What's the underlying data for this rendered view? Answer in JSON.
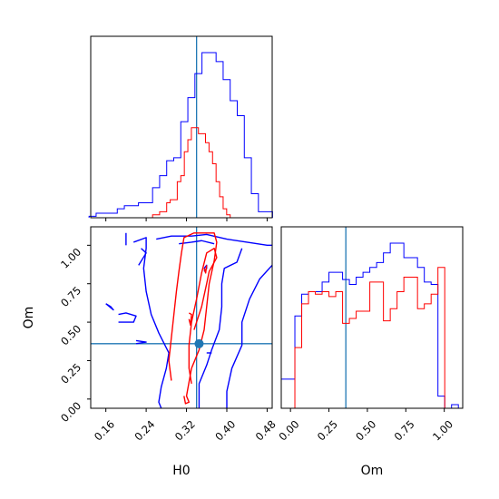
{
  "colors": {
    "series_a": "#0000ff",
    "series_b": "#ff0000",
    "truth": "#1f77b4",
    "frame": "#000000"
  },
  "chart_data": [
    {
      "type": "histogram",
      "panel": "H0 marginal",
      "xlim": [
        0.13,
        0.49
      ],
      "xticks": [
        0.16,
        0.24,
        0.32,
        0.4,
        0.48
      ],
      "tick_labels_shown": false,
      "truth_x": 0.34,
      "bin_edges": [
        0.1267,
        0.1407,
        0.1547,
        0.1687,
        0.1827,
        0.1967,
        0.2107,
        0.2247,
        0.2387,
        0.2527,
        0.2667,
        0.2807,
        0.2947,
        0.3087,
        0.3227,
        0.3367,
        0.3507,
        0.3647,
        0.3787,
        0.3927,
        0.4067,
        0.4207,
        0.4347,
        0.4487,
        0.4627,
        0.4767,
        0.4907
      ],
      "series": [
        {
          "name": "",
          "color": "#0000ff",
          "values": [
            0.5,
            1.5,
            1.5,
            1.5,
            3,
            4,
            4,
            5,
            5,
            10,
            14,
            19,
            20,
            32,
            40,
            48,
            55,
            55,
            52,
            46,
            39,
            34,
            20,
            8,
            2,
            2
          ]
        },
        {
          "name": "",
          "color": "#ff0000"
        }
      ],
      "series_b_steps": {
        "edges": [
          0.2387,
          0.2457,
          0.2527,
          0.2597,
          0.2667,
          0.2737,
          0.2807,
          0.2877,
          0.2947,
          0.3017,
          0.3087,
          0.3157,
          0.3227,
          0.3297,
          0.3367,
          0.3437,
          0.3507,
          0.3577,
          0.3647,
          0.3717,
          0.3787,
          0.3857,
          0.3927,
          0.3997,
          0.4067
        ],
        "values": [
          0,
          0,
          1,
          1,
          2,
          2,
          5,
          6,
          6,
          12,
          14,
          22,
          26,
          30,
          30,
          28,
          28,
          25,
          22,
          18,
          12,
          7,
          3,
          1
        ]
      }
    },
    {
      "type": "contour",
      "panel": "H0 vs Om joint",
      "xlabel": "H0",
      "ylabel": "Om",
      "xlim": [
        0.13,
        0.49
      ],
      "ylim": [
        -0.06,
        1.12
      ],
      "xticks": [
        0.16,
        0.24,
        0.32,
        0.4,
        0.48
      ],
      "yticks": [
        0.0,
        0.25,
        0.5,
        0.75,
        1.0
      ],
      "xtick_labels": [
        "0.16",
        "0.24",
        "0.32",
        "0.40",
        "0.48"
      ],
      "ytick_labels": [
        "0.00",
        "0.25",
        "0.50",
        "0.75",
        "1.00"
      ],
      "truth": [
        0.34,
        0.36
      ],
      "marker": [
        0.345,
        0.36
      ],
      "series": [
        {
          "name": "",
          "color": "#0000ff",
          "contours": [
            [
              [
                0.215,
                1.02
              ],
              [
                0.24,
                1.05
              ],
              [
                0.24,
                0.98
              ],
              [
                0.235,
                0.85
              ],
              [
                0.24,
                0.7
              ],
              [
                0.25,
                0.55
              ],
              [
                0.265,
                0.43
              ],
              [
                0.285,
                0.3
              ],
              [
                0.28,
                0.2
              ],
              [
                0.27,
                0.08
              ],
              [
                0.265,
                -0.02
              ],
              [
                0.27,
                -0.06
              ]
            ],
            [
              [
                0.26,
                1.04
              ],
              [
                0.29,
                1.06
              ],
              [
                0.33,
                1.06
              ],
              [
                0.36,
                1.07
              ],
              [
                0.4,
                1.04
              ],
              [
                0.44,
                1.02
              ],
              [
                0.48,
                1.0
              ],
              [
                0.49,
                1.0
              ]
            ],
            [
              [
                0.305,
                1.01
              ],
              [
                0.33,
                1.02
              ],
              [
                0.35,
                1.03
              ],
              [
                0.375,
                1.01
              ]
            ],
            [
              [
                0.43,
                0.98
              ],
              [
                0.42,
                0.89
              ],
              [
                0.395,
                0.85
              ],
              [
                0.39,
                0.75
              ],
              [
                0.39,
                0.6
              ],
              [
                0.385,
                0.45
              ],
              [
                0.37,
                0.32
              ],
              [
                0.36,
                0.22
              ],
              [
                0.345,
                0.1
              ],
              [
                0.345,
                -0.06
              ]
            ],
            [
              [
                0.49,
                0.87
              ],
              [
                0.465,
                0.78
              ],
              [
                0.445,
                0.65
              ],
              [
                0.43,
                0.5
              ],
              [
                0.43,
                0.35
              ],
              [
                0.41,
                0.2
              ],
              [
                0.4,
                0.05
              ],
              [
                0.4,
                -0.06
              ]
            ],
            [
              [
                0.2,
                1.0
              ],
              [
                0.2,
                1.08
              ]
            ],
            [
              [
                0.225,
                0.87
              ],
              [
                0.24,
                0.95
              ],
              [
                0.23,
                0.98
              ]
            ],
            [
              [
                0.355,
                0.83
              ],
              [
                0.36,
                0.85
              ],
              [
                0.36,
                0.87
              ],
              [
                0.355,
                0.85
              ]
            ],
            [
              [
                0.16,
                0.62
              ],
              [
                0.175,
                0.58
              ],
              [
                0.17,
                0.6
              ],
              [
                0.16,
                0.62
              ]
            ],
            [
              [
                0.185,
                0.5
              ],
              [
                0.215,
                0.5
              ],
              [
                0.22,
                0.54
              ],
              [
                0.2,
                0.56
              ],
              [
                0.185,
                0.55
              ]
            ],
            [
              [
                0.22,
                0.36
              ],
              [
                0.24,
                0.37
              ],
              [
                0.22,
                0.38
              ]
            ],
            [
              [
                0.36,
                0.3
              ],
              [
                0.37,
                0.3
              ]
            ]
          ]
        },
        {
          "name": "",
          "color": "#ff0000",
          "contours": [
            [
              [
                0.29,
                0.12
              ],
              [
                0.285,
                0.25
              ],
              [
                0.29,
                0.4
              ],
              [
                0.295,
                0.55
              ],
              [
                0.3,
                0.7
              ],
              [
                0.305,
                0.83
              ],
              [
                0.31,
                0.95
              ],
              [
                0.315,
                1.05
              ],
              [
                0.335,
                1.08
              ],
              [
                0.35,
                1.08
              ],
              [
                0.375,
                1.08
              ],
              [
                0.38,
                1.02
              ],
              [
                0.375,
                0.9
              ],
              [
                0.365,
                0.75
              ],
              [
                0.36,
                0.6
              ],
              [
                0.355,
                0.45
              ],
              [
                0.345,
                0.32
              ],
              [
                0.33,
                0.2
              ],
              [
                0.32,
                0.02
              ],
              [
                0.325,
                -0.02
              ],
              [
                0.318,
                -0.03
              ],
              [
                0.315,
                0.02
              ]
            ],
            [
              [
                0.335,
                0.45
              ],
              [
                0.35,
                0.6
              ],
              [
                0.36,
                0.75
              ],
              [
                0.365,
                0.83
              ],
              [
                0.38,
                0.92
              ],
              [
                0.375,
                0.98
              ],
              [
                0.36,
                0.95
              ],
              [
                0.35,
                0.82
              ],
              [
                0.34,
                0.65
              ],
              [
                0.33,
                0.5
              ],
              [
                0.325,
                0.35
              ],
              [
                0.325,
                0.2
              ],
              [
                0.33,
                0.1
              ]
            ],
            [
              [
                0.325,
                0.52
              ],
              [
                0.328,
                0.48
              ],
              [
                0.33,
                0.55
              ],
              [
                0.325,
                0.56
              ]
            ],
            [
              [
                0.355,
                0.85
              ],
              [
                0.358,
                0.82
              ],
              [
                0.36,
                0.87
              ]
            ]
          ]
        }
      ]
    },
    {
      "type": "histogram",
      "panel": "Om marginal",
      "xlabel": "Om",
      "xlim": [
        -0.06,
        1.12
      ],
      "xticks": [
        0.0,
        0.25,
        0.5,
        0.75,
        1.0
      ],
      "xtick_labels": [
        "0.00",
        "0.25",
        "0.50",
        "0.75",
        "1.00"
      ],
      "truth_x": 0.36,
      "bin_edges": [
        -0.06,
        -0.0157,
        0.0286,
        0.0729,
        0.1172,
        0.1615,
        0.2058,
        0.2501,
        0.2944,
        0.3387,
        0.383,
        0.4273,
        0.4716,
        0.5159,
        0.5602,
        0.6045,
        0.6488,
        0.6931,
        0.7374,
        0.7817,
        0.826,
        0.8703,
        0.9146,
        0.9589,
        1.0032,
        1.0475,
        1.0918,
        1.12
      ],
      "series": [
        {
          "name": "",
          "color": "#0000ff",
          "values": [
            12,
            12,
            38,
            47,
            48,
            48,
            52,
            56,
            56,
            53,
            51,
            54,
            56,
            58,
            60,
            64,
            68,
            68,
            62,
            62,
            58,
            52,
            51,
            5,
            0,
            1.5,
            0
          ]
        },
        {
          "name": "",
          "color": "#ff0000",
          "values": [
            0,
            0,
            25,
            43,
            48,
            47,
            48,
            46,
            48,
            35,
            37,
            40,
            40,
            52,
            52,
            36,
            41,
            48,
            54,
            54,
            41,
            43,
            47,
            58,
            0,
            0,
            0
          ]
        }
      ]
    }
  ]
}
